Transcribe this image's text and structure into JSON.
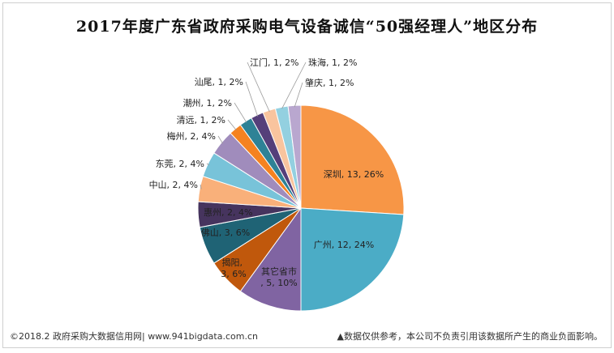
{
  "title": "2017年度广东省政府采购电气设备诚信“50强经理人”地区分布",
  "footer": {
    "left": "©2018.2 政府采购大数据信用网| www.941bigdata.com.cn",
    "right": "▲数据仅供参考，本公司不负责引用该数据所产生的商业负面影响。"
  },
  "chart_data": {
    "type": "pie",
    "title": "2017年度广东省政府采购电气设备诚信“50强经理人”地区分布",
    "legend": "none",
    "slices": [
      {
        "name": "深圳",
        "value": 13,
        "percent": "26%",
        "label": "深圳, 13, 26%",
        "color": "#F79646"
      },
      {
        "name": "广州",
        "value": 12,
        "percent": "24%",
        "label": "广州, 12, 24%",
        "color": "#4BACC6"
      },
      {
        "name": "其它省市",
        "value": 5,
        "percent": "10%",
        "label": "其它省市, 5, 10%",
        "color": "#8064A2"
      },
      {
        "name": "揭阳",
        "value": 3,
        "percent": "6%",
        "label": "揭阳, 3, 6%",
        "color": "#C0580C"
      },
      {
        "name": "佛山",
        "value": 3,
        "percent": "6%",
        "label": "佛山, 3, 6%",
        "color": "#1F6375"
      },
      {
        "name": "惠州",
        "value": 2,
        "percent": "4%",
        "label": "惠州, 2, 4%",
        "color": "#46345E"
      },
      {
        "name": "中山",
        "value": 2,
        "percent": "4%",
        "label": "中山, 2, 4%",
        "color": "#F9B07A"
      },
      {
        "name": "东莞",
        "value": 2,
        "percent": "4%",
        "label": "东莞, 2, 4%",
        "color": "#78C3D9"
      },
      {
        "name": "梅州",
        "value": 2,
        "percent": "4%",
        "label": "梅州, 2, 4%",
        "color": "#A08CBC"
      },
      {
        "name": "清远",
        "value": 1,
        "percent": "2%",
        "label": "清远, 1, 2%",
        "color": "#F58220"
      },
      {
        "name": "潮州",
        "value": 1,
        "percent": "2%",
        "label": "潮州, 1, 2%",
        "color": "#2E8296"
      },
      {
        "name": "汕尾",
        "value": 1,
        "percent": "2%",
        "label": "汕尾, 1, 2%",
        "color": "#553F7A"
      },
      {
        "name": "江门",
        "value": 1,
        "percent": "2%",
        "label": "江门, 1, 2%",
        "color": "#F9C49E"
      },
      {
        "name": "珠海",
        "value": 1,
        "percent": "2%",
        "label": "珠海, 1, 2%",
        "color": "#93D0E0"
      },
      {
        "name": "肇庆",
        "value": 1,
        "percent": "2%",
        "label": "肇庆, 1, 2%",
        "color": "#B9A7CF"
      }
    ]
  }
}
